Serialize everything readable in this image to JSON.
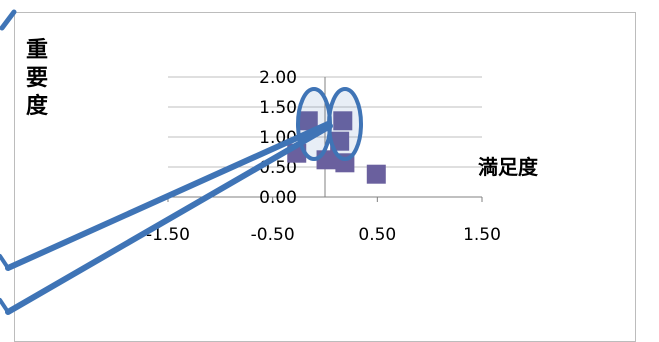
{
  "chart_data": {
    "type": "scatter",
    "title": "",
    "xlabel": "満足度",
    "ylabel_chars": [
      "重",
      "要",
      "度"
    ],
    "xlim": [
      -1.5,
      1.5
    ],
    "ylim": [
      0,
      2.0
    ],
    "x_ticks": [
      "-1.50",
      "-0.50",
      "0.50",
      "1.50"
    ],
    "y_ticks": [
      "0.00",
      "0.50",
      "1.00",
      "1.50",
      "2.00"
    ],
    "grid": "horizontal",
    "legend": "none",
    "series": [
      {
        "points": [
          {
            "x": -0.27,
            "y": 0.73
          },
          {
            "x": -0.16,
            "y": 1.27
          },
          {
            "x": 0.01,
            "y": 0.62
          },
          {
            "x": 0.14,
            "y": 0.93
          },
          {
            "x": 0.17,
            "y": 1.27
          },
          {
            "x": 0.19,
            "y": 0.57
          },
          {
            "x": 0.49,
            "y": 0.38
          }
        ]
      }
    ],
    "colors": {
      "marker": "#6a609e",
      "annotation": "#3f74b6",
      "grid": "#bfbfbf",
      "axis": "#808080"
    }
  }
}
